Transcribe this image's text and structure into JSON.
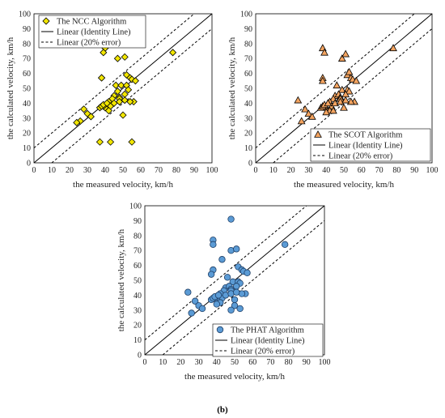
{
  "caption": "(b)",
  "chart_data": [
    {
      "type": "scatter",
      "xlabel": "the measured velocity, km/h",
      "ylabel": "the calculated velocity, km/h",
      "xlim": [
        0,
        100
      ],
      "ylim": [
        0,
        100
      ],
      "xticks": [
        "0",
        "10",
        "20",
        "30",
        "40",
        "50",
        "60",
        "70",
        "80",
        "90",
        "100"
      ],
      "yticks": [
        "0",
        "10",
        "20",
        "30",
        "40",
        "50",
        "60",
        "70",
        "80",
        "90",
        "100"
      ],
      "legend_position": "top-left",
      "series": [
        {
          "name": "The NCC Algorithm",
          "marker": "diamond",
          "color": "#f2e600",
          "x": [
            78,
            40,
            39,
            47,
            51,
            38,
            38,
            52,
            54,
            55,
            57,
            46,
            49,
            52,
            53,
            51,
            45,
            47,
            48,
            48,
            44,
            42,
            41,
            43,
            40,
            39,
            28,
            30,
            32,
            37,
            38,
            39,
            41,
            26,
            24,
            45,
            48,
            42,
            50,
            56,
            54,
            51,
            37,
            43,
            55
          ],
          "y": [
            74,
            77,
            74,
            70,
            71,
            57,
            57,
            59,
            57,
            56,
            55,
            52,
            52,
            52,
            49,
            46,
            45,
            48,
            44,
            43,
            43,
            41,
            40,
            38,
            37,
            38,
            36,
            33,
            31,
            37,
            38,
            39,
            40,
            28,
            27,
            40,
            41,
            35,
            32,
            41,
            41,
            42,
            14,
            14,
            14
          ]
        },
        {
          "name": "Linear (Identity Line)",
          "type": "line",
          "style": "solid",
          "x": [
            0,
            100
          ],
          "y": [
            0,
            100
          ]
        },
        {
          "name": "Linear (20% error)",
          "type": "line",
          "style": "dashed",
          "x": [
            [
              0,
              90
            ],
            [
              10,
              100
            ]
          ],
          "y": [
            [
              10,
              100
            ],
            [
              0,
              90
            ]
          ]
        }
      ]
    },
    {
      "type": "scatter",
      "xlabel": "the measured velocity, km/h",
      "ylabel": "the calculated velocity, km/h",
      "xlim": [
        0,
        100
      ],
      "ylim": [
        0,
        100
      ],
      "xticks": [
        "0",
        "10",
        "20",
        "30",
        "40",
        "50",
        "60",
        "70",
        "80",
        "90",
        "100"
      ],
      "yticks": [
        "0",
        "10",
        "20",
        "30",
        "40",
        "50",
        "60",
        "70",
        "80",
        "90",
        "100"
      ],
      "legend_position": "bottom-right",
      "series": [
        {
          "name": "The SCOT Algorithm",
          "marker": "triangle",
          "color": "#f4a460",
          "x": [
            78,
            38,
            39,
            49,
            51,
            38,
            38,
            52,
            54,
            55,
            57,
            46,
            49,
            52,
            53,
            51,
            45,
            47,
            48,
            48,
            44,
            42,
            41,
            43,
            40,
            39,
            28,
            30,
            32,
            37,
            38,
            39,
            41,
            26,
            24,
            45,
            48,
            42,
            50,
            56,
            54,
            51,
            53,
            40,
            44
          ],
          "y": [
            77,
            77,
            74,
            70,
            73,
            57,
            55,
            59,
            57,
            56,
            55,
            52,
            49,
            49,
            48,
            46,
            45,
            46,
            44,
            43,
            43,
            41,
            40,
            38,
            37,
            38,
            36,
            33,
            31,
            37,
            38,
            39,
            40,
            28,
            42,
            40,
            41,
            35,
            37,
            41,
            41,
            42,
            61,
            34,
            35
          ]
        },
        {
          "name": "Linear (Identity Line)",
          "type": "line",
          "style": "solid",
          "x": [
            0,
            100
          ],
          "y": [
            0,
            100
          ]
        },
        {
          "name": "Linear (20% error)",
          "type": "line",
          "style": "dashed",
          "x": [
            [
              0,
              90
            ],
            [
              10,
              100
            ]
          ],
          "y": [
            [
              10,
              100
            ],
            [
              0,
              90
            ]
          ]
        }
      ]
    },
    {
      "type": "scatter",
      "xlabel": "the measured velocity, km/h",
      "ylabel": "the calculated velocity, km/h",
      "xlim": [
        0,
        100
      ],
      "ylim": [
        0,
        100
      ],
      "xticks": [
        "0",
        "10",
        "20",
        "30",
        "40",
        "50",
        "60",
        "70",
        "80",
        "90",
        "100"
      ],
      "yticks": [
        "0",
        "10",
        "20",
        "30",
        "40",
        "50",
        "60",
        "70",
        "80",
        "90",
        "100"
      ],
      "legend_position": "bottom-right",
      "series": [
        {
          "name": "The PHAT Algorithm",
          "marker": "circle",
          "color": "#5b9bd5",
          "x": [
            48,
            78,
            38,
            38,
            48,
            51,
            38,
            37,
            43,
            52,
            54,
            55,
            57,
            46,
            49,
            52,
            53,
            51,
            45,
            47,
            48,
            48,
            44,
            42,
            41,
            43,
            40,
            39,
            28,
            30,
            32,
            37,
            38,
            39,
            41,
            26,
            24,
            45,
            48,
            42,
            50,
            56,
            54,
            51,
            50,
            48,
            53,
            40
          ],
          "y": [
            91,
            74,
            77,
            74,
            70,
            71,
            57,
            54,
            64,
            59,
            57,
            56,
            55,
            52,
            49,
            49,
            48,
            46,
            45,
            46,
            44,
            43,
            43,
            41,
            40,
            38,
            37,
            38,
            36,
            33,
            31,
            37,
            38,
            39,
            40,
            28,
            42,
            40,
            41,
            35,
            37,
            41,
            41,
            42,
            33,
            30,
            31,
            34
          ]
        },
        {
          "name": "Linear (Identity Line)",
          "type": "line",
          "style": "solid",
          "x": [
            0,
            100
          ],
          "y": [
            0,
            100
          ]
        },
        {
          "name": "Linear (20% error)",
          "type": "line",
          "style": "dashed",
          "x": [
            [
              0,
              90
            ],
            [
              10,
              100
            ]
          ],
          "y": [
            [
              10,
              100
            ],
            [
              0,
              90
            ]
          ]
        }
      ]
    }
  ]
}
